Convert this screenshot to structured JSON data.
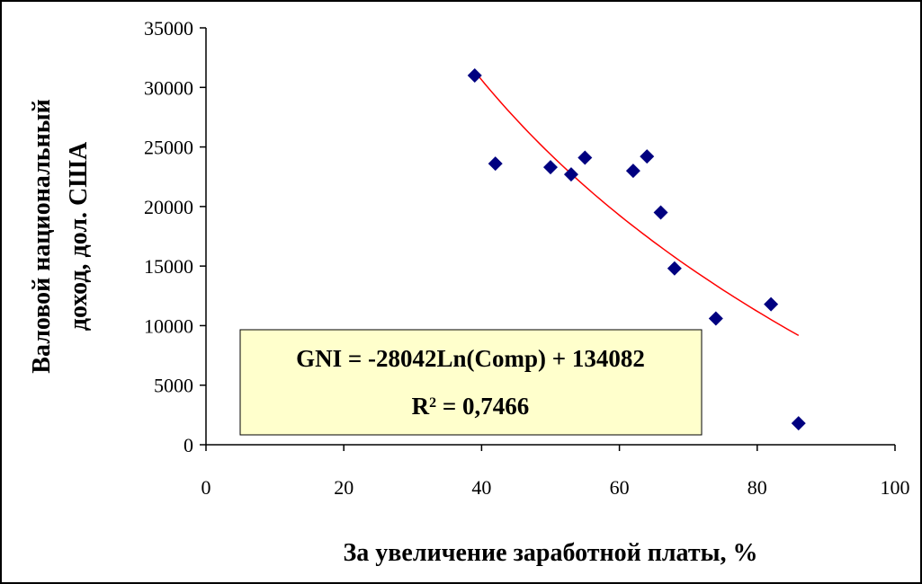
{
  "chart_data": {
    "type": "scatter",
    "xlabel": "За увеличение заработной платы, %",
    "ylabel_line1": "Валовой национальный",
    "ylabel_line2": "доход, дол. США",
    "xlim": [
      0,
      100
    ],
    "ylim": [
      0,
      35000
    ],
    "xticks": [
      0,
      20,
      40,
      60,
      80,
      100
    ],
    "yticks": [
      0,
      5000,
      10000,
      15000,
      20000,
      25000,
      30000,
      35000
    ],
    "grid": false,
    "marker_color": "#000080",
    "trend_color": "#ff0000",
    "points": [
      {
        "x": 39,
        "y": 31000
      },
      {
        "x": 42,
        "y": 23600
      },
      {
        "x": 50,
        "y": 23300
      },
      {
        "x": 53,
        "y": 22700
      },
      {
        "x": 55,
        "y": 24100
      },
      {
        "x": 62,
        "y": 23000
      },
      {
        "x": 64,
        "y": 24200
      },
      {
        "x": 66,
        "y": 19500
      },
      {
        "x": 68,
        "y": 14800
      },
      {
        "x": 74,
        "y": 10600
      },
      {
        "x": 82,
        "y": 11800
      },
      {
        "x": 86,
        "y": 1800
      }
    ],
    "trendline": {
      "type": "logarithmic",
      "a": -28042,
      "b": 134082,
      "x_range": [
        39,
        86
      ]
    },
    "annotation": {
      "equation": "GNI = -28042Ln(Comp) + 134082",
      "r2_prefix": "R",
      "r2_sup": "2",
      "r2_value": " = 0,7466",
      "box_fill": "#ffffcc"
    }
  }
}
